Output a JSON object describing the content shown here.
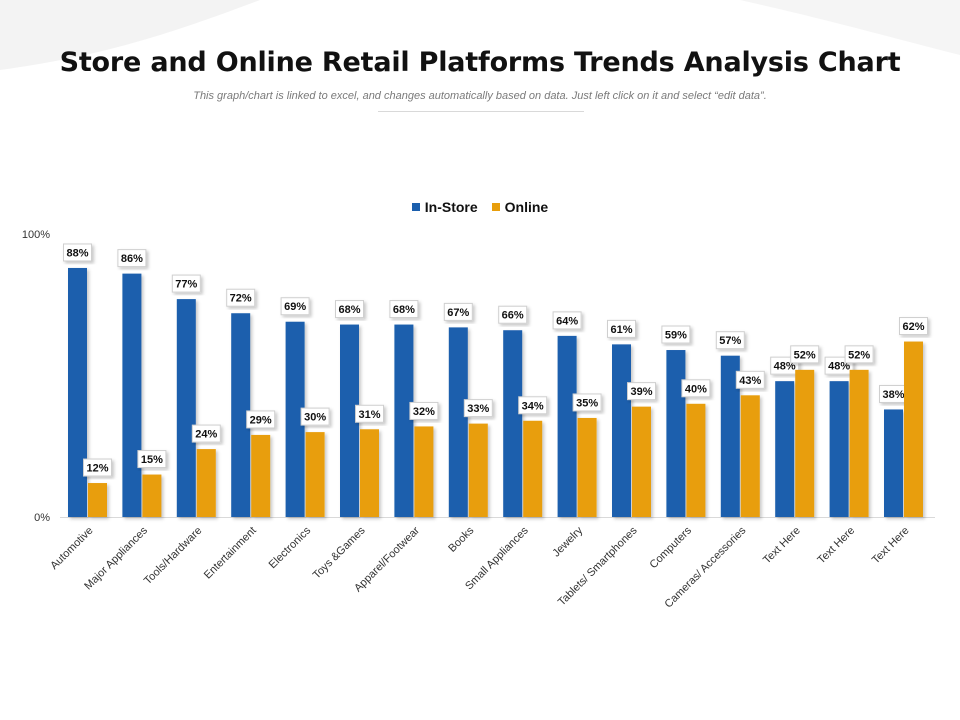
{
  "title": "Store and Online Retail Platforms Trends Analysis Chart",
  "subtitle": "This graph/chart is linked to excel, and changes automatically based on data. Just left click on it and select “edit data”.",
  "colors": {
    "in_store": "#1B5FAD",
    "online": "#E89E0C"
  },
  "chart_data": {
    "type": "bar",
    "categories": [
      "Automotive",
      "Major Appliances",
      "Tools/Hardware",
      "Entertainment",
      "Electronics",
      "Toys &Games",
      "Apparel/Footwear",
      "Books",
      "Small Appliances",
      "Jewelry",
      "Tablets/ Smartphones",
      "Computers",
      "Cameras/ Accessories",
      "Text Here",
      "Text Here",
      "Text Here"
    ],
    "series": [
      {
        "name": "In-Store",
        "values": [
          88,
          86,
          77,
          72,
          69,
          68,
          68,
          67,
          66,
          64,
          61,
          59,
          57,
          48,
          48,
          38
        ]
      },
      {
        "name": "Online",
        "values": [
          12,
          15,
          24,
          29,
          30,
          31,
          32,
          33,
          34,
          35,
          39,
          40,
          43,
          52,
          52,
          62
        ]
      }
    ],
    "ylim": [
      0,
      100
    ],
    "yticks": [
      "0%",
      "100%"
    ],
    "value_suffix": "%",
    "legend_position": "top-center",
    "grid": false
  }
}
